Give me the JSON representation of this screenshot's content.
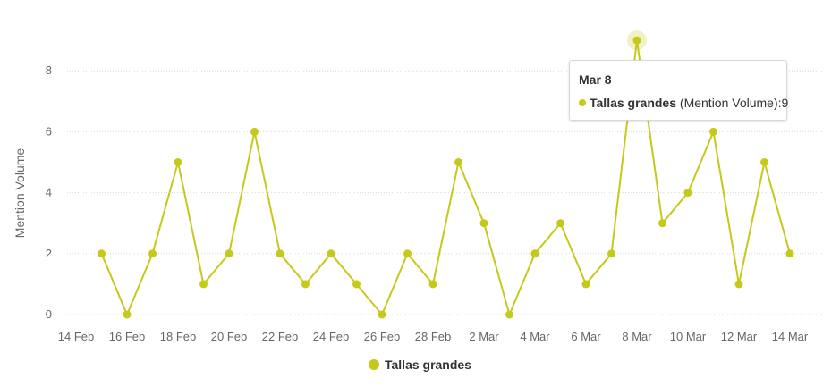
{
  "chart_data": {
    "type": "line",
    "ylabel": "Mention Volume",
    "ylim": [
      0,
      9.5
    ],
    "y_ticks": [
      "0",
      "2",
      "4",
      "6",
      "8"
    ],
    "x_tick_labels": [
      "14 Feb",
      "16 Feb",
      "18 Feb",
      "20 Feb",
      "22 Feb",
      "24 Feb",
      "26 Feb",
      "28 Feb",
      "2 Mar",
      "4 Mar",
      "6 Mar",
      "8 Mar",
      "10 Mar",
      "12 Mar",
      "14 Mar"
    ],
    "x": [
      "15 Feb",
      "16 Feb",
      "17 Feb",
      "18 Feb",
      "19 Feb",
      "20 Feb",
      "21 Feb",
      "22 Feb",
      "23 Feb",
      "24 Feb",
      "25 Feb",
      "26 Feb",
      "27 Feb",
      "28 Feb",
      "1 Mar",
      "2 Mar",
      "3 Mar",
      "4 Mar",
      "5 Mar",
      "6 Mar",
      "7 Mar",
      "8 Mar",
      "9 Mar",
      "10 Mar",
      "11 Mar",
      "12 Mar",
      "13 Mar",
      "14 Mar"
    ],
    "series": [
      {
        "name": "Tallas grandes",
        "color": "#c5c91a",
        "values": [
          2,
          0,
          2,
          5,
          1,
          2,
          6,
          2,
          1,
          2,
          1,
          0,
          2,
          1,
          5,
          3,
          0,
          2,
          3,
          1,
          2,
          9,
          3,
          4,
          6,
          1,
          5,
          2
        ]
      }
    ],
    "grid": true,
    "legend": "bottom-center",
    "highlighted_index": 21
  },
  "tooltip": {
    "title": "Mar 8",
    "series_name": "Tallas grandes",
    "measure": " (Mention Volume):",
    "value": "9"
  },
  "legend": {
    "label": "Tallas grandes"
  }
}
